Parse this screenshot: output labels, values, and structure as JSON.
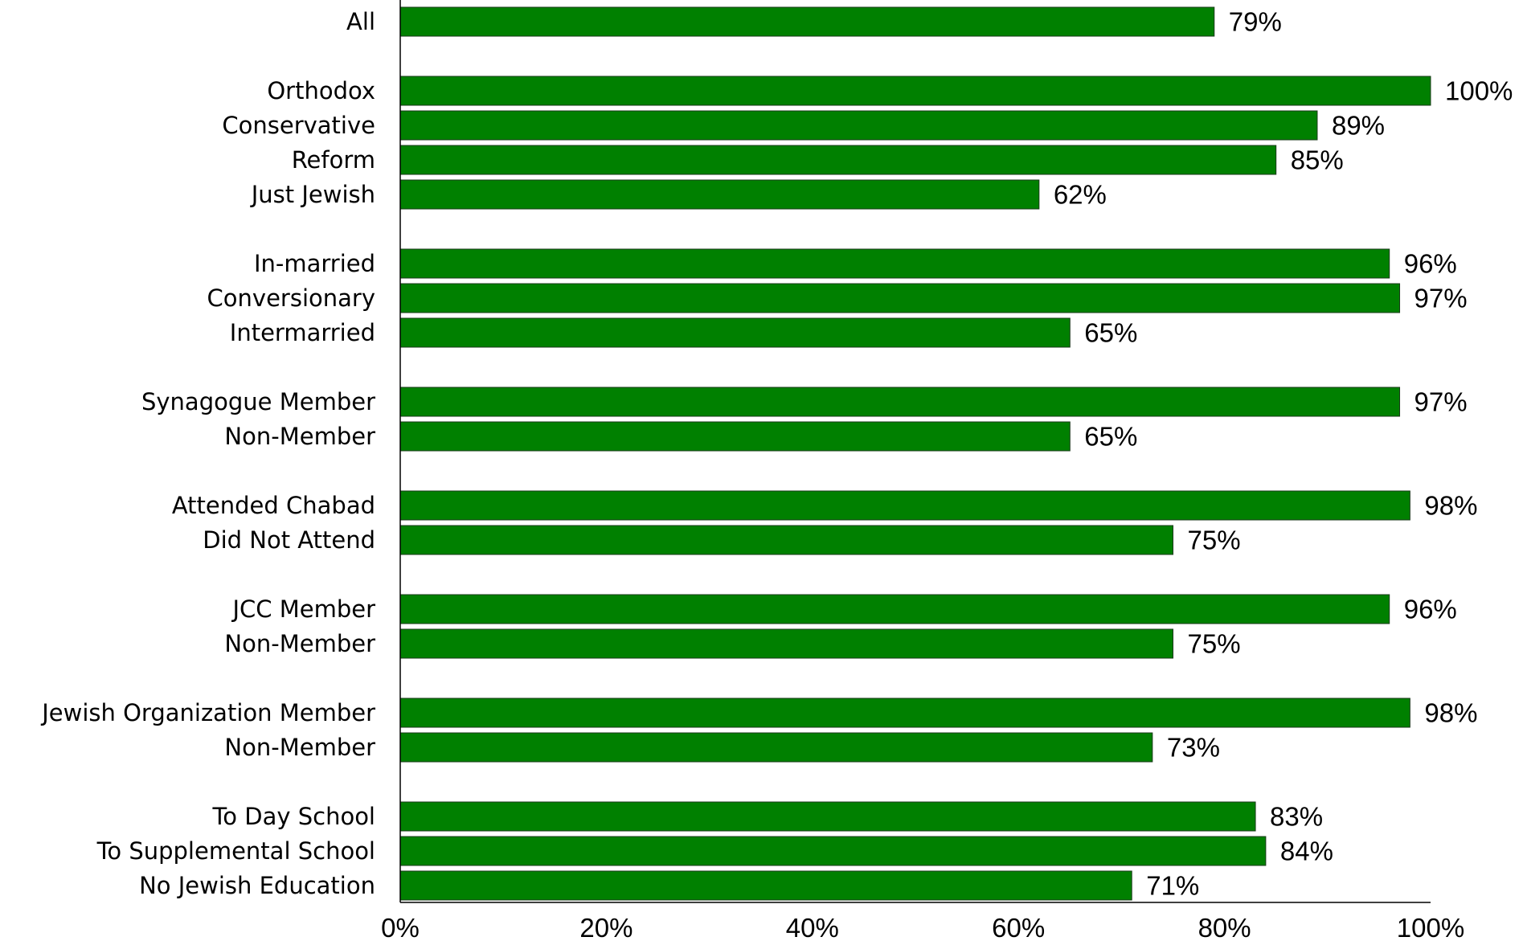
{
  "colors": {
    "bar": "#008000",
    "bar_stroke": "#1a3a1a",
    "axis": "#000000",
    "text": "#000000",
    "background": "#ffffff"
  },
  "chart_data": {
    "type": "bar",
    "orientation": "horizontal",
    "title": "",
    "xlabel": "",
    "ylabel": "",
    "xlim": [
      0,
      100
    ],
    "x_ticks": [
      0,
      20,
      40,
      60,
      80,
      100
    ],
    "x_tick_labels": [
      "0%",
      "20%",
      "40%",
      "60%",
      "80%",
      "100%"
    ],
    "value_suffix": "%",
    "grid": false,
    "legend": "none",
    "groups": [
      {
        "categories": [
          "All"
        ],
        "values": [
          79
        ],
        "value_labels": [
          "79%"
        ]
      },
      {
        "categories": [
          "Orthodox",
          "Conservative",
          "Reform",
          "Just Jewish"
        ],
        "values": [
          100,
          89,
          85,
          62
        ],
        "value_labels": [
          "100%",
          "89%",
          "85%",
          "62%"
        ]
      },
      {
        "categories": [
          "In-married",
          "Conversionary",
          "Intermarried"
        ],
        "values": [
          96,
          97,
          65
        ],
        "value_labels": [
          "96%",
          "97%",
          "65%"
        ]
      },
      {
        "categories": [
          "Synagogue Member",
          "Non-Member"
        ],
        "values": [
          97,
          65
        ],
        "value_labels": [
          "97%",
          "65%"
        ]
      },
      {
        "categories": [
          "Attended Chabad",
          "Did Not Attend"
        ],
        "values": [
          98,
          75
        ],
        "value_labels": [
          "98%",
          "75%"
        ]
      },
      {
        "categories": [
          "JCC Member",
          "Non-Member"
        ],
        "values": [
          96,
          75
        ],
        "value_labels": [
          "96%",
          "75%"
        ]
      },
      {
        "categories": [
          "Jewish Organization Member",
          "Non-Member"
        ],
        "values": [
          98,
          73
        ],
        "value_labels": [
          "98%",
          "73%"
        ]
      },
      {
        "categories": [
          "To Day School",
          "To Supplemental School",
          "No Jewish Education"
        ],
        "values": [
          83,
          84,
          71
        ],
        "value_labels": [
          "83%",
          "84%",
          "71%"
        ]
      }
    ]
  }
}
